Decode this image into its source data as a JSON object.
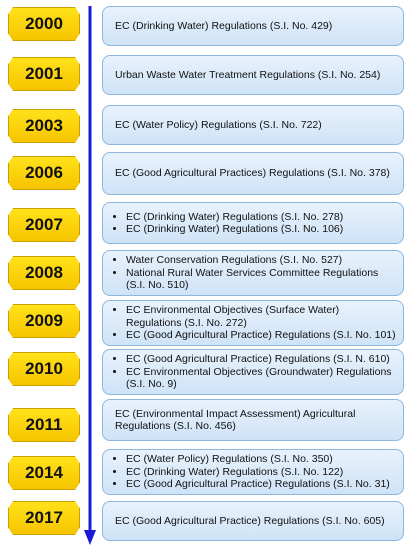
{
  "entries": [
    {
      "year": "2000",
      "items": [
        "EC (Drinking Water) Regulations (S.I. No. 429)"
      ]
    },
    {
      "year": "2001",
      "items": [
        "Urban Waste Water Treatment Regulations (S.I. No. 254)"
      ]
    },
    {
      "year": "2003",
      "items": [
        "EC (Water Policy) Regulations (S.I. No. 722)"
      ]
    },
    {
      "year": "2006",
      "items": [
        "EC (Good Agricultural Practices) Regulations (S.I. No. 378)"
      ]
    },
    {
      "year": "2007",
      "items": [
        "EC (Drinking Water) Regulations (S.I. No. 278)",
        "EC (Drinking Water) Regulations (S.I. No. 106)"
      ]
    },
    {
      "year": "2008",
      "items": [
        "Water Conservation Regulations (S.I. No. 527)",
        "National Rural Water Services Committee Regulations (S.I. No. 510)"
      ]
    },
    {
      "year": "2009",
      "items": [
        "EC Environmental  Objectives (Surface Water) Regulations (S.I. No. 272)",
        "EC (Good Agricultural Practice) Regulations (S.I. No. 101)"
      ]
    },
    {
      "year": "2010",
      "items": [
        "EC (Good Agricultural Practice) Regulations (S.I. N. 610)",
        "EC Environmental Objectives (Groundwater) Regulations (S.I. No. 9)"
      ]
    },
    {
      "year": "2011",
      "items": [
        "EC (Environmental Impact Assessment) Agricultural Regulations (S.I. No. 456)"
      ]
    },
    {
      "year": "2014",
      "items": [
        "EC (Water Policy) Regulations (S.I. No. 350)",
        "EC (Drinking Water) Regulations (S.I. No. 122)",
        "EC (Good Agricultural Practice) Regulations (S.I. No. 31)"
      ]
    },
    {
      "year": "2017",
      "items": [
        "EC (Good Agricultural Practice) Regulations (S.I. No. 605)"
      ]
    }
  ],
  "colors": {
    "arrow": "#1a1ad6",
    "year_fill": "#f6c400",
    "box_fill": "#dbeaf9",
    "box_border": "#8fb6dc"
  }
}
